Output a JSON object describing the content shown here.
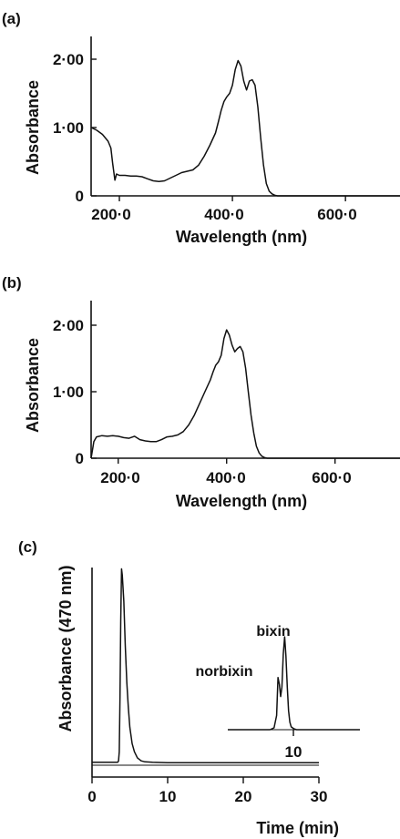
{
  "chart_data": [
    {
      "panel_label": "(a)",
      "type": "line",
      "xlabel": "Wavelength (nm)",
      "ylabel": "Absorbance",
      "xlim": [
        150,
        740
      ],
      "ylim": [
        0,
        2.2
      ],
      "xticks": [
        200,
        400,
        600
      ],
      "xtick_labels": [
        "200·0",
        "400·0",
        "600·0"
      ],
      "yticks": [
        0,
        1,
        2
      ],
      "ytick_labels": [
        "0",
        "1·00",
        "2·00"
      ],
      "grid": false,
      "series": [
        {
          "x": [
            150,
            160,
            170,
            180,
            185,
            188,
            192,
            195,
            200,
            210,
            220,
            230,
            240,
            250,
            260,
            270,
            280,
            290,
            300,
            310,
            320,
            330,
            340,
            350,
            360,
            370,
            375,
            380,
            385,
            390,
            395,
            400,
            405,
            410,
            415,
            420,
            425,
            430,
            435,
            440,
            445,
            450,
            455,
            460,
            465,
            470,
            475,
            480,
            490,
            500,
            510,
            520,
            530,
            540,
            560,
            600,
            650,
            700,
            740
          ],
          "y": [
            1.0,
            0.96,
            0.9,
            0.8,
            0.7,
            0.48,
            0.23,
            0.32,
            0.3,
            0.3,
            0.29,
            0.29,
            0.28,
            0.25,
            0.22,
            0.21,
            0.22,
            0.26,
            0.3,
            0.34,
            0.36,
            0.38,
            0.45,
            0.58,
            0.74,
            0.92,
            1.08,
            1.25,
            1.38,
            1.45,
            1.5,
            1.62,
            1.85,
            1.98,
            1.9,
            1.68,
            1.55,
            1.68,
            1.7,
            1.62,
            1.3,
            0.85,
            0.45,
            0.18,
            0.07,
            0.03,
            0.01,
            0.0,
            0.0,
            0.0,
            0.0,
            0.0,
            0.0,
            0.0,
            0.0,
            0.0,
            0.0,
            0.0,
            0.0
          ]
        }
      ]
    },
    {
      "panel_label": "(b)",
      "type": "line",
      "xlabel": "Wavelength (nm)",
      "ylabel": "Absorbance",
      "xlim": [
        150,
        740
      ],
      "ylim": [
        0,
        2.2
      ],
      "xticks": [
        200,
        400,
        600
      ],
      "xtick_labels": [
        "200·0",
        "400·0",
        "600·0"
      ],
      "yticks": [
        0,
        1,
        2
      ],
      "ytick_labels": [
        "0",
        "1·00",
        "2·00"
      ],
      "grid": false,
      "series": [
        {
          "x": [
            150,
            155,
            160,
            170,
            180,
            190,
            200,
            210,
            220,
            230,
            240,
            250,
            260,
            270,
            280,
            290,
            300,
            310,
            320,
            330,
            340,
            350,
            360,
            370,
            375,
            380,
            385,
            390,
            395,
            400,
            405,
            410,
            415,
            420,
            425,
            430,
            435,
            440,
            445,
            450,
            455,
            460,
            465,
            470,
            475,
            480,
            490,
            500,
            520,
            560,
            600,
            650,
            700,
            740
          ],
          "y": [
            0.0,
            0.25,
            0.32,
            0.34,
            0.33,
            0.34,
            0.33,
            0.31,
            0.3,
            0.33,
            0.28,
            0.26,
            0.25,
            0.25,
            0.28,
            0.32,
            0.33,
            0.35,
            0.4,
            0.5,
            0.64,
            0.82,
            1.0,
            1.18,
            1.3,
            1.4,
            1.45,
            1.55,
            1.8,
            1.93,
            1.85,
            1.7,
            1.6,
            1.65,
            1.68,
            1.6,
            1.35,
            1.0,
            0.65,
            0.38,
            0.18,
            0.08,
            0.03,
            0.01,
            0.0,
            0.0,
            0.0,
            0.0,
            0.0,
            0.0,
            0.0,
            0.0,
            0.0,
            0.0
          ]
        }
      ]
    },
    {
      "panel_label": "(c)",
      "type": "line",
      "xlabel": "Time (min)",
      "ylabel": "Absorbance (470 nm)",
      "xlim": [
        0,
        30
      ],
      "ylim": [
        0,
        1.0
      ],
      "xticks": [
        0,
        10,
        20,
        30
      ],
      "xtick_labels": [
        "0",
        "10",
        "20",
        "30"
      ],
      "grid": false,
      "series": [
        {
          "x": [
            0,
            3.4,
            3.5,
            3.6,
            3.7,
            3.8,
            3.9,
            4.0,
            4.2,
            4.4,
            4.6,
            4.8,
            5.0,
            5.3,
            5.6,
            6.0,
            6.5,
            7.0,
            8.0,
            10.0,
            15.0,
            20.0,
            25.0,
            30.0
          ],
          "y": [
            0.028,
            0.028,
            0.035,
            0.08,
            0.35,
            0.72,
            0.98,
            0.95,
            0.82,
            0.6,
            0.42,
            0.3,
            0.2,
            0.12,
            0.08,
            0.05,
            0.035,
            0.03,
            0.028,
            0.026,
            0.026,
            0.026,
            0.026,
            0.026
          ]
        }
      ],
      "inset": {
        "type": "line",
        "xlim": [
          5,
          15
        ],
        "ylim": [
          0,
          1.0
        ],
        "xticks": [
          10
        ],
        "xtick_labels": [
          "10"
        ],
        "annotations": [
          "bixin",
          "norbixin"
        ],
        "series": [
          {
            "x": [
              5,
              8.2,
              8.5,
              8.7,
              8.8,
              8.9,
              9.0,
              9.1,
              9.2,
              9.3,
              9.4,
              9.5,
              9.6,
              9.7,
              9.8,
              10.0,
              10.2,
              10.5,
              15
            ],
            "y": [
              0.0,
              0.0,
              0.02,
              0.15,
              0.55,
              0.48,
              0.35,
              0.45,
              0.8,
              0.98,
              0.78,
              0.45,
              0.2,
              0.08,
              0.03,
              0.01,
              0.0,
              0.0,
              0.0
            ]
          }
        ]
      }
    }
  ]
}
